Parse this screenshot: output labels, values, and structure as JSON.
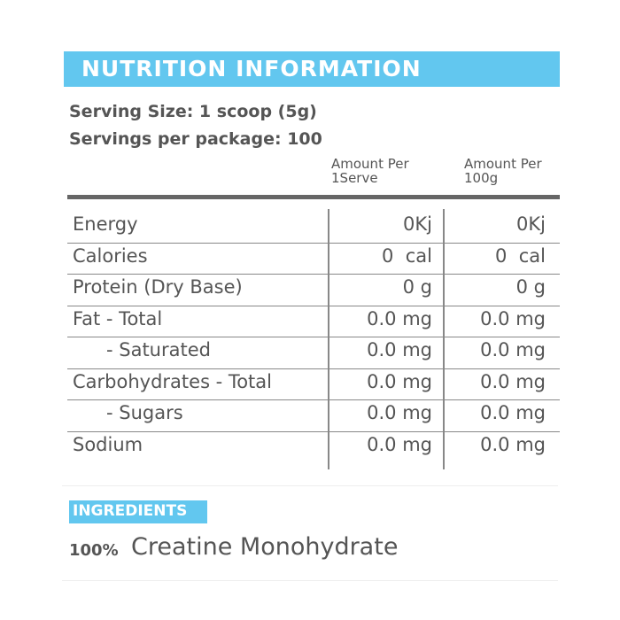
{
  "header": {
    "title": "NUTRITION INFORMATION"
  },
  "serving": {
    "size": "Serving Size: 1 scoop (5g)",
    "per_package": "Servings per package: 100"
  },
  "table": {
    "columns": [
      "Amount Per 1Serve",
      "Amount Per 100g"
    ],
    "rows": [
      [
        "Energy",
        "0Kj",
        "0Kj"
      ],
      [
        "Calories",
        "0  cal",
        "0  cal"
      ],
      [
        "Protein (Dry Base)",
        "0 g",
        "0 g"
      ],
      [
        "Fat - Total",
        "0.0 mg",
        "0.0 mg"
      ],
      [
        "- Saturated",
        "0.0 mg",
        "0.0 mg"
      ],
      [
        "Carbohydrates - Total",
        "0.0 mg",
        "0.0 mg"
      ],
      [
        "- Sugars",
        "0.0 mg",
        "0.0 mg"
      ],
      [
        "Sodium",
        "0.0 mg",
        "0.0 mg"
      ]
    ]
  },
  "ingredients": {
    "title": "INGREDIENTS",
    "percent": "100%",
    "name": "Creatine Monohydrate"
  }
}
